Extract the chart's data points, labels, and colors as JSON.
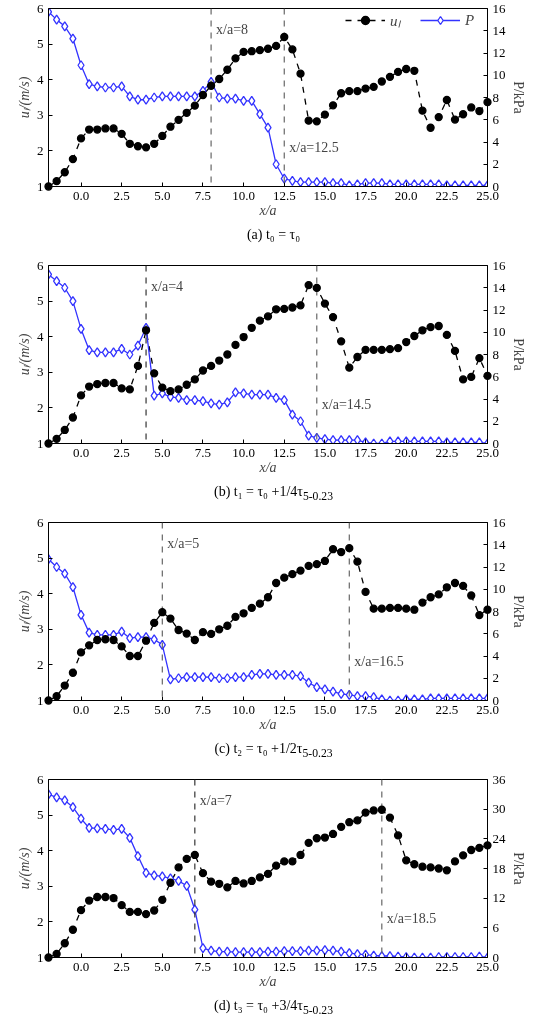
{
  "chart_data": [
    {
      "type": "line",
      "title": "(a)    t₀ = τ₀",
      "xlabel": "x/a",
      "ylabel": "uₗ/(m/s)",
      "y2label": "P/kPa",
      "legend": "top right",
      "grid": false,
      "x": [
        -2,
        -1.5,
        -1,
        -0.5,
        0,
        0.5,
        1,
        1.5,
        2,
        2.5,
        3,
        3.5,
        4,
        4.5,
        5,
        5.5,
        6,
        6.5,
        7,
        7.5,
        8,
        8.5,
        9,
        9.5,
        10,
        10.5,
        11,
        11.5,
        12,
        12.5,
        13,
        13.5,
        14,
        14.5,
        15,
        15.5,
        16,
        16.5,
        17,
        17.5,
        18,
        18.5,
        19,
        19.5,
        20,
        20.5,
        21,
        21.5,
        22,
        22.5,
        23,
        23.5,
        24,
        24.5,
        25
      ],
      "xlim": [
        -2,
        25
      ],
      "xticks": [
        {
          "value": 0,
          "label": "0.0"
        },
        {
          "value": 2.5,
          "label": "2.5"
        },
        {
          "value": 5,
          "label": "5.0"
        },
        {
          "value": 7.5,
          "label": "7.5"
        },
        {
          "value": 10,
          "label": "10.0"
        },
        {
          "value": 12.5,
          "label": "12.5"
        },
        {
          "value": 15,
          "label": "15.0"
        },
        {
          "value": 17.5,
          "label": "17.5"
        },
        {
          "value": 20,
          "label": "20.0"
        },
        {
          "value": 22.5,
          "label": "22.5"
        },
        {
          "value": 25,
          "label": "25.0"
        }
      ],
      "ylim": [
        1,
        6
      ],
      "yticks": [
        1,
        2,
        3,
        4,
        5,
        6
      ],
      "y2lim": [
        0,
        16
      ],
      "y2ticks": [
        0,
        2,
        4,
        6,
        8,
        10,
        12,
        14,
        16
      ],
      "series": [
        {
          "name": "uₗ",
          "color": "#000000",
          "marker": "circle",
          "line_style": "dashed",
          "values": [
            1.0,
            1.15,
            1.4,
            1.77,
            2.35,
            2.6,
            2.6,
            2.63,
            2.63,
            2.48,
            2.2,
            2.13,
            2.1,
            2.2,
            2.42,
            2.68,
            2.87,
            3.07,
            3.27,
            3.57,
            3.83,
            4.02,
            4.28,
            4.6,
            4.78,
            4.8,
            4.83,
            4.87,
            4.95,
            5.2,
            4.85,
            4.17,
            2.85,
            2.83,
            3.02,
            3.28,
            3.62,
            3.68,
            3.68,
            3.75,
            3.8,
            3.95,
            4.08,
            4.22,
            4.3,
            4.25,
            3.13,
            2.65,
            2.95,
            3.43,
            2.88,
            3.03,
            3.22,
            3.12,
            3.37
          ]
        },
        {
          "name": "P",
          "color": "#3333ff",
          "marker": "diamond",
          "line_style": "solid",
          "axis": "y2",
          "values": [
            15.7,
            15.0,
            14.4,
            13.3,
            10.9,
            9.2,
            9.0,
            8.9,
            8.9,
            9.0,
            8.1,
            7.8,
            7.8,
            8.0,
            8.1,
            8.1,
            8.1,
            8.1,
            8.1,
            8.6,
            9.4,
            8.0,
            7.9,
            7.9,
            7.7,
            7.7,
            6.5,
            5.3,
            2.0,
            0.7,
            0.5,
            0.4,
            0.4,
            0.4,
            0.4,
            0.3,
            0.3,
            0.1,
            0.2,
            0.3,
            0.3,
            0.3,
            0.2,
            0.2,
            0.2,
            0.2,
            0.2,
            0.2,
            0.2,
            0.1,
            0.1,
            0.1,
            0.1,
            0.1,
            0.1
          ]
        }
      ],
      "ref_lines": [
        {
          "axis": "x",
          "value": 8,
          "label": "x/a=8",
          "color": "#666666",
          "line_style": "dashed"
        },
        {
          "axis": "x",
          "value": 12.5,
          "label": "x/a=12.5",
          "color": "#666666",
          "line_style": "dashed"
        }
      ]
    },
    {
      "type": "line",
      "title": "(b)    t₁ = τ₀ +1/4τ$_{5-0.23}$",
      "xlabel": "x/a",
      "ylabel": "uₗ/(m/s)",
      "y2label": "P/kPa",
      "grid": false,
      "x": [
        -2,
        -1.5,
        -1,
        -0.5,
        0,
        0.5,
        1,
        1.5,
        2,
        2.5,
        3,
        3.5,
        4,
        4.5,
        5,
        5.5,
        6,
        6.5,
        7,
        7.5,
        8,
        8.5,
        9,
        9.5,
        10,
        10.5,
        11,
        11.5,
        12,
        12.5,
        13,
        13.5,
        14,
        14.5,
        15,
        15.5,
        16,
        16.5,
        17,
        17.5,
        18,
        18.5,
        19,
        19.5,
        20,
        20.5,
        21,
        21.5,
        22,
        22.5,
        23,
        23.5,
        24,
        24.5,
        25
      ],
      "xlim": [
        -2,
        25
      ],
      "xticks": [
        {
          "value": 0,
          "label": "0.0"
        },
        {
          "value": 2.5,
          "label": "2.5"
        },
        {
          "value": 5,
          "label": "5.0"
        },
        {
          "value": 7.5,
          "label": "7.5"
        },
        {
          "value": 10,
          "label": "10.0"
        },
        {
          "value": 12.5,
          "label": "12.5"
        },
        {
          "value": 15,
          "label": "15.0"
        },
        {
          "value": 17.5,
          "label": "17.5"
        },
        {
          "value": 20,
          "label": "20.0"
        },
        {
          "value": 22.5,
          "label": "22.5"
        },
        {
          "value": 25,
          "label": "25.0"
        }
      ],
      "ylim": [
        1,
        6
      ],
      "yticks": [
        1,
        2,
        3,
        4,
        5,
        6
      ],
      "y2lim": [
        0,
        16
      ],
      "y2ticks": [
        0,
        2,
        4,
        6,
        8,
        10,
        12,
        14,
        16
      ],
      "series": [
        {
          "color": "#000000",
          "marker": "circle",
          "line_style": "dashed",
          "values": [
            1.0,
            1.13,
            1.38,
            1.73,
            2.35,
            2.6,
            2.67,
            2.7,
            2.7,
            2.55,
            2.52,
            3.18,
            4.18,
            2.97,
            2.57,
            2.47,
            2.52,
            2.65,
            2.8,
            3.05,
            3.18,
            3.33,
            3.5,
            3.77,
            3.99,
            4.25,
            4.45,
            4.57,
            4.77,
            4.78,
            4.82,
            4.88,
            5.45,
            5.37,
            4.93,
            4.55,
            3.87,
            3.13,
            3.43,
            3.63,
            3.63,
            3.63,
            3.65,
            3.68,
            3.85,
            4.02,
            4.18,
            4.27,
            4.3,
            4.05,
            3.6,
            2.8,
            2.87,
            3.4,
            2.9
          ]
        },
        {
          "color": "#3333ff",
          "marker": "diamond",
          "line_style": "solid",
          "axis": "y2",
          "values": [
            15.2,
            14.6,
            14.0,
            12.8,
            10.3,
            8.4,
            8.2,
            8.2,
            8.2,
            8.5,
            8.0,
            8.8,
            10.4,
            4.3,
            4.5,
            4.2,
            4.1,
            3.9,
            3.9,
            3.8,
            3.6,
            3.5,
            3.7,
            4.6,
            4.5,
            4.4,
            4.4,
            4.4,
            4.1,
            3.9,
            2.6,
            2.0,
            0.7,
            0.5,
            0.4,
            0.3,
            0.3,
            0.3,
            0.3,
            0.1,
            0.0,
            0.0,
            0.2,
            0.2,
            0.2,
            0.2,
            0.2,
            0.2,
            0.2,
            0.1,
            0.1,
            0.1,
            0.1,
            0.1,
            0.0
          ]
        }
      ],
      "ref_lines": [
        {
          "axis": "x",
          "value": 4,
          "label": "x/a=4",
          "color": "#333333",
          "line_style": "dashed"
        },
        {
          "axis": "x",
          "value": 14.5,
          "label": "x/a=14.5",
          "color": "#666666",
          "line_style": "dashed"
        }
      ]
    },
    {
      "type": "line",
      "title": "(c)    t₂ = τ₀ +1/2τ$_{5-0.23}$",
      "xlabel": "x/a",
      "ylabel": "uₗ/(m/s)",
      "y2label": "P/kPa",
      "grid": false,
      "x": [
        -2,
        -1.5,
        -1,
        -0.5,
        0,
        0.5,
        1,
        1.5,
        2,
        2.5,
        3,
        3.5,
        4,
        4.5,
        5,
        5.5,
        6,
        6.5,
        7,
        7.5,
        8,
        8.5,
        9,
        9.5,
        10,
        10.5,
        11,
        11.5,
        12,
        12.5,
        13,
        13.5,
        14,
        14.5,
        15,
        15.5,
        16,
        16.5,
        17,
        17.5,
        18,
        18.5,
        19,
        19.5,
        20,
        20.5,
        21,
        21.5,
        22,
        22.5,
        23,
        23.5,
        24,
        24.5,
        25
      ],
      "xlim": [
        -2,
        25
      ],
      "xticks": [
        {
          "value": 0,
          "label": "0.0"
        },
        {
          "value": 2.5,
          "label": "2.5"
        },
        {
          "value": 5,
          "label": "5.0"
        },
        {
          "value": 7.5,
          "label": "7.5"
        },
        {
          "value": 10,
          "label": "10.0"
        },
        {
          "value": 12.5,
          "label": "12.5"
        },
        {
          "value": 15,
          "label": "15.0"
        },
        {
          "value": 17.5,
          "label": "17.5"
        },
        {
          "value": 20,
          "label": "20.0"
        },
        {
          "value": 22.5,
          "label": "22.5"
        },
        {
          "value": 25,
          "label": "25.0"
        }
      ],
      "ylim": [
        1,
        6
      ],
      "yticks": [
        1,
        2,
        3,
        4,
        5,
        6
      ],
      "y2lim": [
        0,
        16
      ],
      "y2ticks": [
        0,
        2,
        4,
        6,
        8,
        10,
        12,
        14,
        16
      ],
      "series": [
        {
          "color": "#000000",
          "marker": "circle",
          "line_style": "dashed",
          "values": [
            1.0,
            1.12,
            1.42,
            1.78,
            2.35,
            2.55,
            2.7,
            2.72,
            2.7,
            2.52,
            2.25,
            2.25,
            2.68,
            3.18,
            3.48,
            3.3,
            2.98,
            2.88,
            2.7,
            2.92,
            2.87,
            3.0,
            3.1,
            3.35,
            3.45,
            3.6,
            3.72,
            3.9,
            4.3,
            4.45,
            4.55,
            4.65,
            4.78,
            4.83,
            4.92,
            5.25,
            5.17,
            5.28,
            4.9,
            4.05,
            3.58,
            3.58,
            3.6,
            3.6,
            3.58,
            3.55,
            3.75,
            3.9,
            3.98,
            4.18,
            4.3,
            4.22,
            3.95,
            3.4,
            3.55
          ]
        },
        {
          "color": "#3333ff",
          "marker": "diamond",
          "line_style": "solid",
          "axis": "y2",
          "values": [
            12.7,
            12.0,
            11.4,
            10.2,
            7.7,
            6.1,
            5.9,
            5.9,
            5.9,
            6.2,
            5.6,
            5.7,
            5.7,
            5.5,
            5.0,
            1.9,
            2.0,
            2.1,
            2.1,
            2.1,
            2.1,
            2.0,
            2.0,
            2.1,
            2.1,
            2.3,
            2.4,
            2.4,
            2.3,
            2.3,
            2.3,
            2.2,
            1.6,
            1.2,
            1.0,
            0.8,
            0.6,
            0.5,
            0.4,
            0.4,
            0.3,
            0.1,
            0.0,
            0.0,
            0.1,
            0.1,
            0.1,
            0.2,
            0.2,
            0.2,
            0.2,
            0.2,
            0.2,
            0.2,
            0.2
          ]
        }
      ],
      "ref_lines": [
        {
          "axis": "x",
          "value": 5,
          "label": "x/a=5",
          "color": "#666666",
          "line_style": "dashed"
        },
        {
          "axis": "x",
          "value": 16.5,
          "label": "x/a=16.5",
          "color": "#666666",
          "line_style": "dashed"
        }
      ]
    },
    {
      "type": "line",
      "title": "(d)    t₃ = τ₀ +3/4τ$_{5-0.23}$",
      "xlabel": "x/a",
      "ylabel": "uₗ/(m/s)",
      "y2label": "P/kPa",
      "grid": false,
      "x": [
        -2,
        -1.5,
        -1,
        -0.5,
        0,
        0.5,
        1,
        1.5,
        2,
        2.5,
        3,
        3.5,
        4,
        4.5,
        5,
        5.5,
        6,
        6.5,
        7,
        7.5,
        8,
        8.5,
        9,
        9.5,
        10,
        10.5,
        11,
        11.5,
        12,
        12.5,
        13,
        13.5,
        14,
        14.5,
        15,
        15.5,
        16,
        16.5,
        17,
        17.5,
        18,
        18.5,
        19,
        19.5,
        20,
        20.5,
        21,
        21.5,
        22,
        22.5,
        23,
        23.5,
        24,
        24.5,
        25
      ],
      "xlim": [
        -2,
        25
      ],
      "xticks": [
        {
          "value": 0,
          "label": "0.0"
        },
        {
          "value": 2.5,
          "label": "2.5"
        },
        {
          "value": 5,
          "label": "5.0"
        },
        {
          "value": 7.5,
          "label": "7.5"
        },
        {
          "value": 10,
          "label": "10.0"
        },
        {
          "value": 12.5,
          "label": "12.5"
        },
        {
          "value": 15,
          "label": "15.0"
        },
        {
          "value": 17.5,
          "label": "17.5"
        },
        {
          "value": 20,
          "label": "20.0"
        },
        {
          "value": 22.5,
          "label": "22.5"
        },
        {
          "value": 25,
          "label": "25.0"
        }
      ],
      "ylim": [
        1,
        6
      ],
      "yticks": [
        1,
        2,
        3,
        4,
        5,
        6
      ],
      "y2lim": [
        0,
        36
      ],
      "y2ticks": [
        0,
        6,
        12,
        18,
        24,
        30,
        36
      ],
      "series": [
        {
          "color": "#000000",
          "marker": "circle",
          "line_style": "dashed",
          "values": [
            1.0,
            1.1,
            1.4,
            1.78,
            2.33,
            2.6,
            2.7,
            2.7,
            2.67,
            2.47,
            2.28,
            2.28,
            2.22,
            2.32,
            2.62,
            3.1,
            3.53,
            3.77,
            3.88,
            3.37,
            3.13,
            3.07,
            2.97,
            3.15,
            3.08,
            3.15,
            3.25,
            3.35,
            3.58,
            3.7,
            3.7,
            3.88,
            4.22,
            4.35,
            4.37,
            4.47,
            4.67,
            4.8,
            4.85,
            5.07,
            5.13,
            5.15,
            4.93,
            4.43,
            3.73,
            3.62,
            3.55,
            3.53,
            3.5,
            3.45,
            3.7,
            3.87,
            4.02,
            4.08,
            4.15
          ]
        },
        {
          "color": "#3333ff",
          "marker": "diamond",
          "line_style": "solid",
          "axis": "y2",
          "values": [
            33.0,
            32.4,
            31.8,
            30.4,
            28.1,
            26.2,
            26.1,
            26.0,
            25.8,
            26.0,
            24.2,
            20.5,
            17.1,
            16.6,
            16.4,
            16.0,
            15.5,
            14.5,
            9.7,
            1.9,
            1.4,
            1.2,
            1.2,
            1.1,
            1.1,
            1.1,
            1.1,
            1.2,
            1.2,
            1.3,
            1.3,
            1.3,
            1.4,
            1.4,
            1.5,
            1.4,
            1.2,
            0.9,
            0.7,
            0.6,
            0.4,
            0.3,
            0.3,
            0.2,
            0.1,
            0.0,
            0.0,
            0.0,
            0.1,
            0.1,
            0.1,
            0.1,
            0.1,
            0.2,
            0.0
          ]
        }
      ],
      "ref_lines": [
        {
          "axis": "x",
          "value": 7,
          "label": "x/a=7",
          "color": "#333333",
          "line_style": "dashed"
        },
        {
          "axis": "x",
          "value": 18.5,
          "label": "x/a=18.5",
          "color": "#666666",
          "line_style": "dashed"
        }
      ]
    }
  ]
}
